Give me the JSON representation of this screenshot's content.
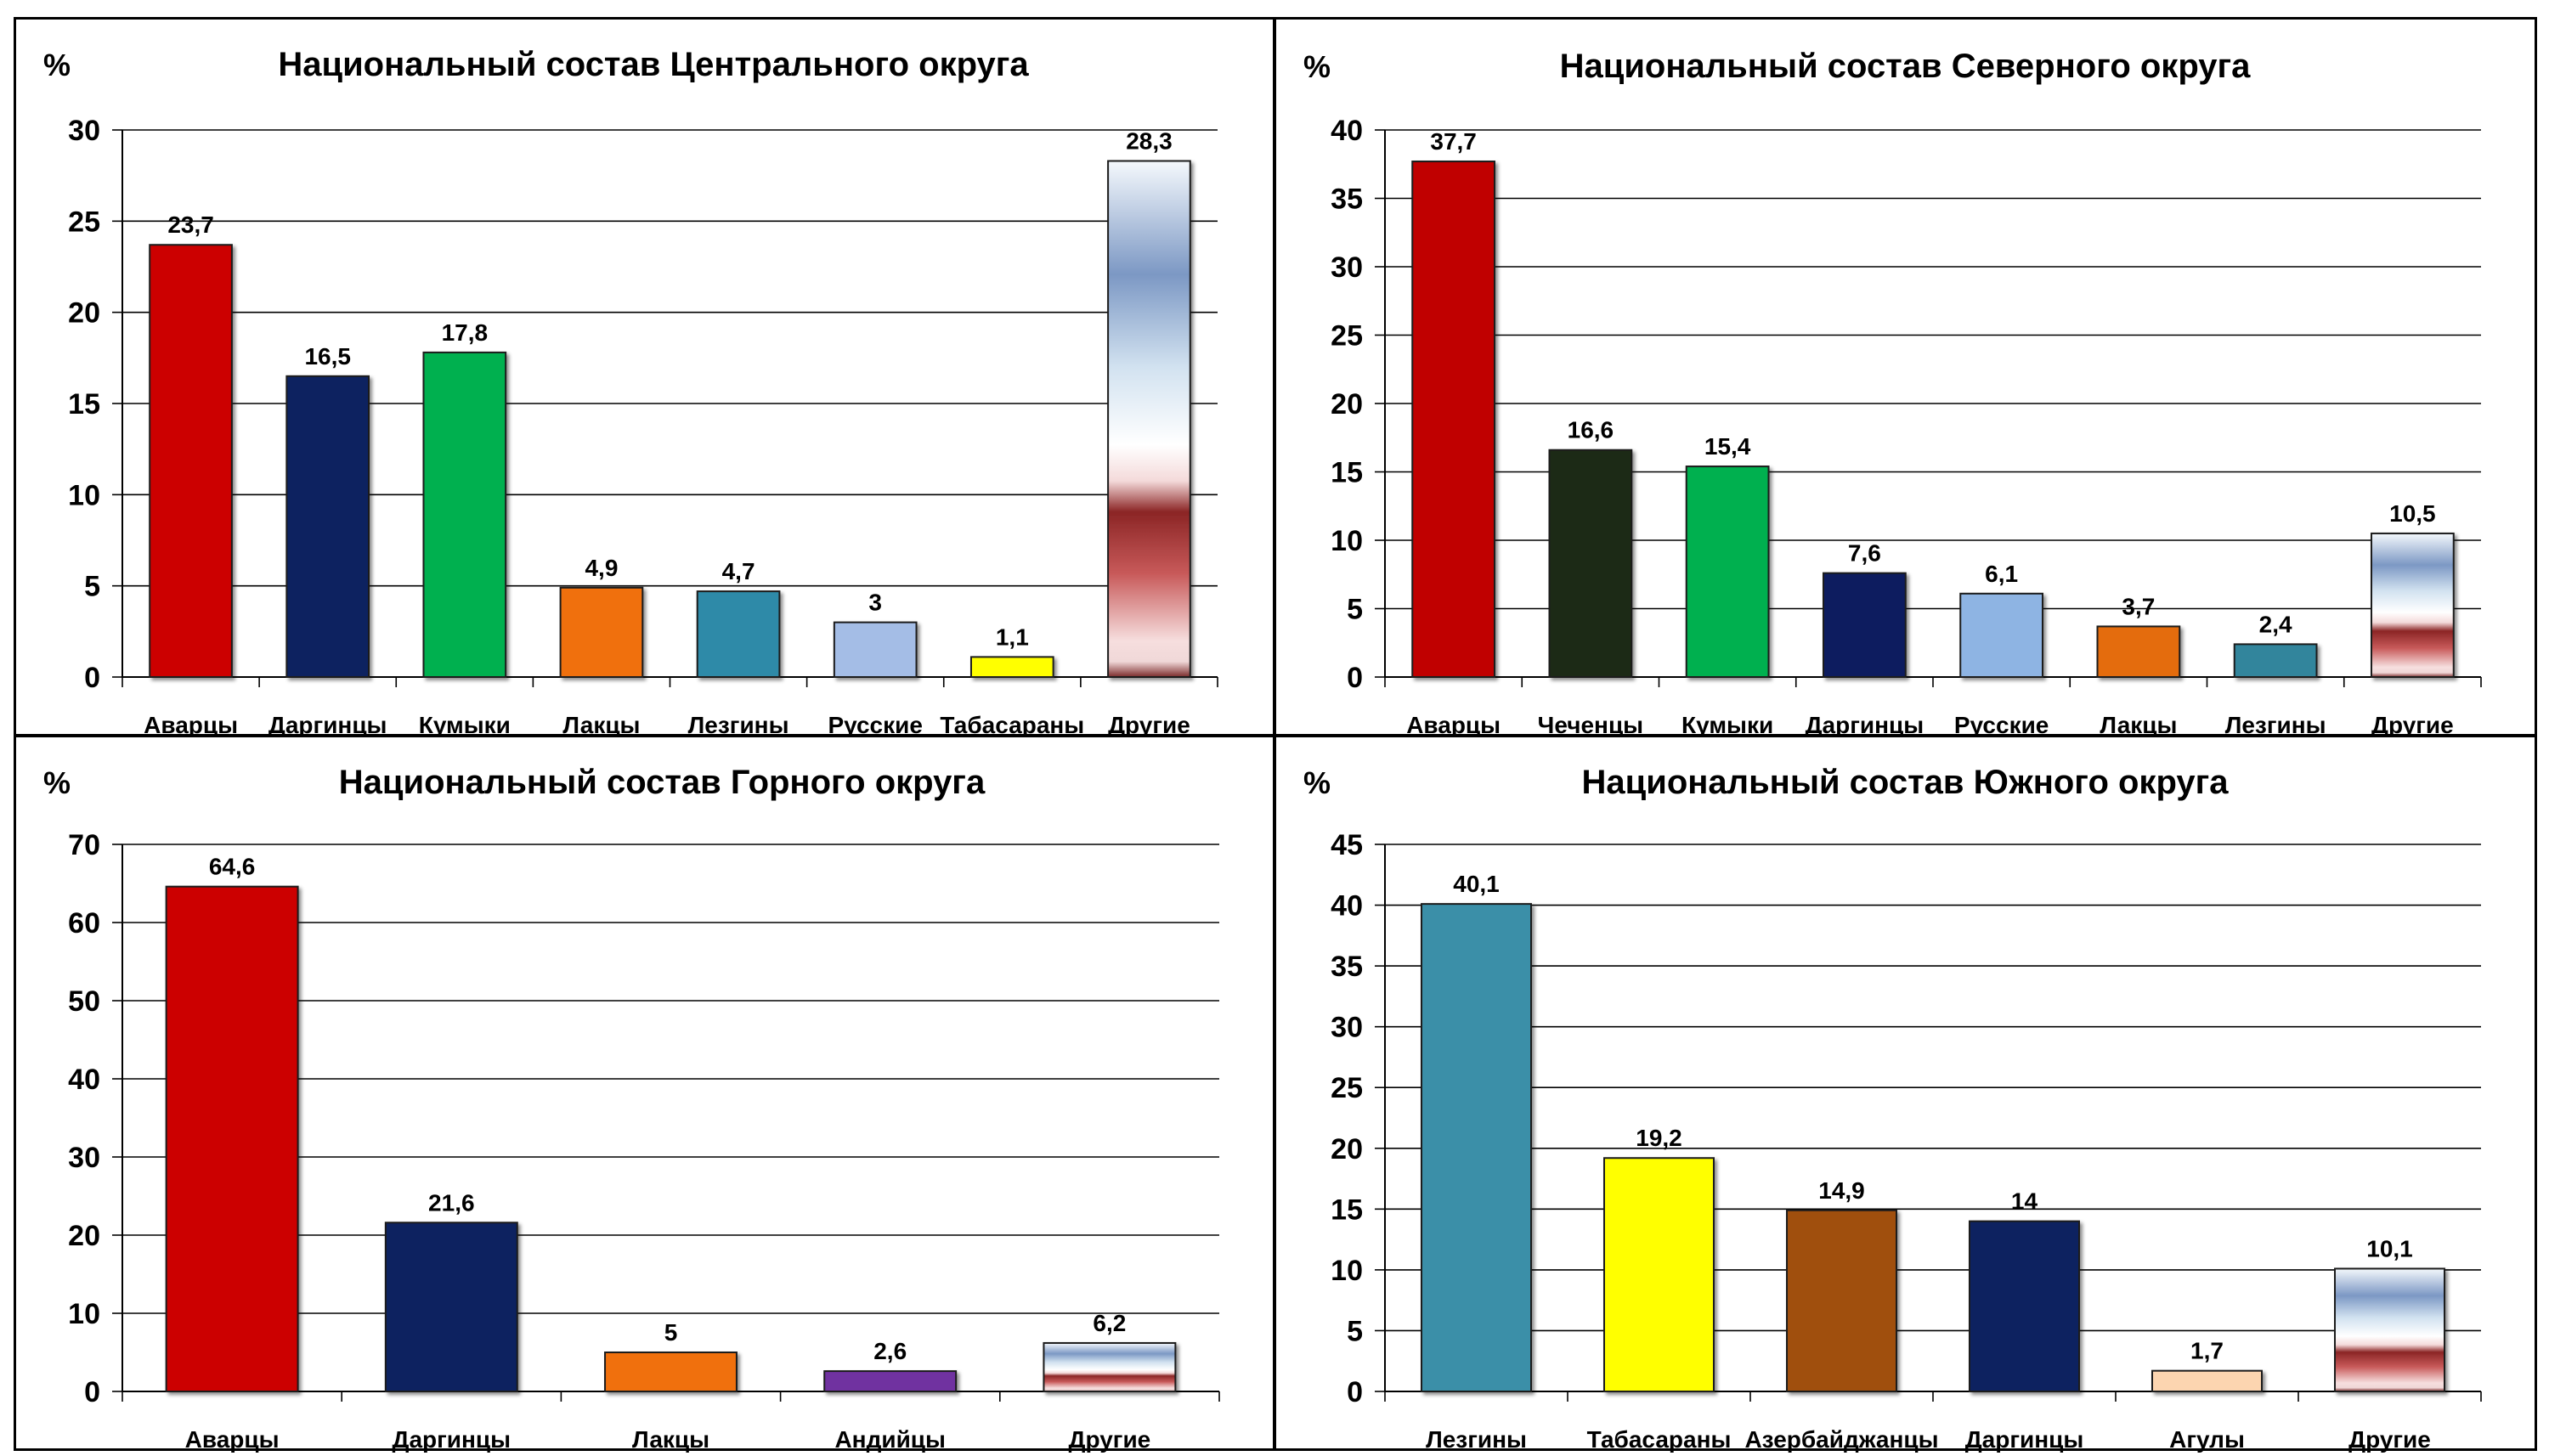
{
  "chart_data": [
    {
      "type": "bar",
      "title": "Национальный состав Центрального округа",
      "ylabel": "%",
      "ylim": [
        0,
        30
      ],
      "yticks": [
        0,
        5,
        10,
        15,
        20,
        25,
        30
      ],
      "grid": true,
      "categories": [
        "Аварцы",
        "Даргинцы",
        "Кумыки",
        "Лакцы",
        "Лезгины",
        "Русские",
        "Табасараны",
        "Другие"
      ],
      "values": [
        23.7,
        16.5,
        17.8,
        4.9,
        4.7,
        3,
        1.1,
        28.3
      ],
      "labels": [
        "23,7",
        "16,5",
        "17,8",
        "4,9",
        "4,7",
        "3",
        "1,1",
        "28,3"
      ],
      "colors": [
        "#cc0000",
        "#0a2460",
        "#00b050",
        "#f07010",
        "#2e8aa8",
        "#a4bde6",
        "#ffff00",
        "gradient"
      ]
    },
    {
      "type": "bar",
      "title": "Национальный состав Северного округа",
      "ylabel": "%",
      "ylim": [
        0,
        40
      ],
      "yticks": [
        0,
        5,
        10,
        15,
        20,
        25,
        30,
        35,
        40
      ],
      "grid": true,
      "categories": [
        "Аварцы",
        "Чеченцы",
        "Кумыки",
        "Даргинцы",
        "Русские",
        "Лакцы",
        "Лезгины",
        "Другие"
      ],
      "values": [
        37.7,
        16.6,
        15.4,
        7.6,
        6.1,
        3.7,
        2.4,
        10.5
      ],
      "labels": [
        "37,7",
        "16,6",
        "15,4",
        "7,6",
        "6,1",
        "3,7",
        "2,4",
        "10,5"
      ],
      "colors": [
        "#c00000",
        "#1f2a14",
        "#00b050",
        "#0a1f5e",
        "#8eb4e3",
        "#e46c0a",
        "#31859c",
        "gradient"
      ]
    },
    {
      "type": "bar",
      "title": "Национальный состав Горного округа",
      "ylabel": "%",
      "ylim": [
        0,
        70
      ],
      "yticks": [
        0,
        10,
        20,
        30,
        40,
        50,
        60,
        70
      ],
      "grid": true,
      "categories": [
        "Аварцы",
        "Даргинцы",
        "Лакцы",
        "Андийцы",
        "Другие"
      ],
      "values": [
        64.6,
        21.6,
        5,
        2.6,
        6.2
      ],
      "labels": [
        "64,6",
        "21,6",
        "5",
        "2,6",
        "6,2"
      ],
      "colors": [
        "#cc0000",
        "#0a2460",
        "#f07010",
        "#7030a0",
        "gradient"
      ]
    },
    {
      "type": "bar",
      "title": "Национальный состав Южного округа",
      "ylabel": "%",
      "ylim": [
        0,
        45
      ],
      "yticks": [
        0,
        5,
        10,
        15,
        20,
        25,
        30,
        35,
        40,
        45
      ],
      "grid": true,
      "categories": [
        "Лезгины",
        "Табасараны",
        "Азербайджанцы",
        "Даргинцы",
        "Агулы",
        "Другие"
      ],
      "values": [
        40.1,
        19.2,
        14.9,
        14,
        1.7,
        10.1
      ],
      "labels": [
        "40,1",
        "19,2",
        "14,9",
        "14",
        "1,7",
        "10,1"
      ],
      "colors": [
        "#3a8fa8",
        "#ffff00",
        "#a0500e",
        "#0a2460",
        "#fcd5b0",
        "gradient"
      ]
    }
  ]
}
